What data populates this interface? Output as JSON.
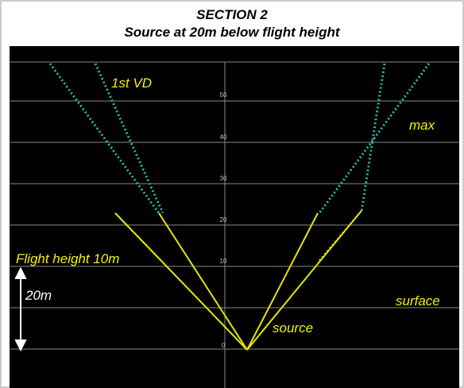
{
  "header": {
    "title": "SECTION 2",
    "subtitle": "Source at 20m below flight height"
  },
  "labels": {
    "first_vd": "1st VD",
    "max": "max",
    "flight_height": "Flight height 10m",
    "offset": "20m",
    "surface": "surface",
    "source": "source"
  },
  "scale_labels": [
    "50",
    "40",
    "30",
    "20",
    "10",
    "0"
  ]
}
